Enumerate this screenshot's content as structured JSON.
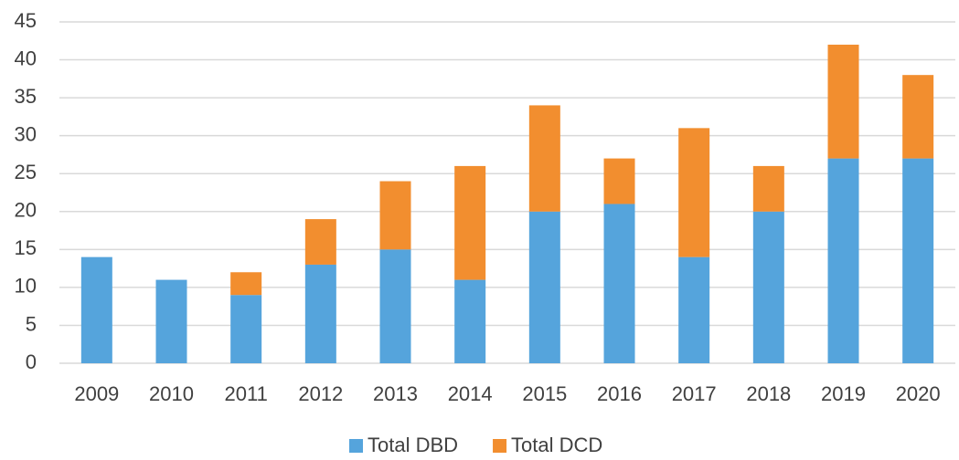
{
  "chart_data": {
    "type": "stacked_bar",
    "categories": [
      "2009",
      "2010",
      "2011",
      "2012",
      "2013",
      "2014",
      "2015",
      "2016",
      "2017",
      "2018",
      "2019",
      "2020"
    ],
    "series": [
      {
        "name": "Total DBD",
        "color": "#55a4dc",
        "values": [
          14,
          11,
          9,
          13,
          15,
          11,
          20,
          21,
          14,
          20,
          27,
          27
        ]
      },
      {
        "name": "Total DCD",
        "color": "#f28e2f",
        "values": [
          0,
          0,
          3,
          6,
          9,
          15,
          14,
          6,
          17,
          6,
          15,
          11
        ]
      }
    ],
    "ylim": [
      0,
      45
    ],
    "yticks": [
      0,
      5,
      10,
      15,
      20,
      25,
      30,
      35,
      40,
      45
    ],
    "grid": true,
    "legend": "bottom"
  }
}
